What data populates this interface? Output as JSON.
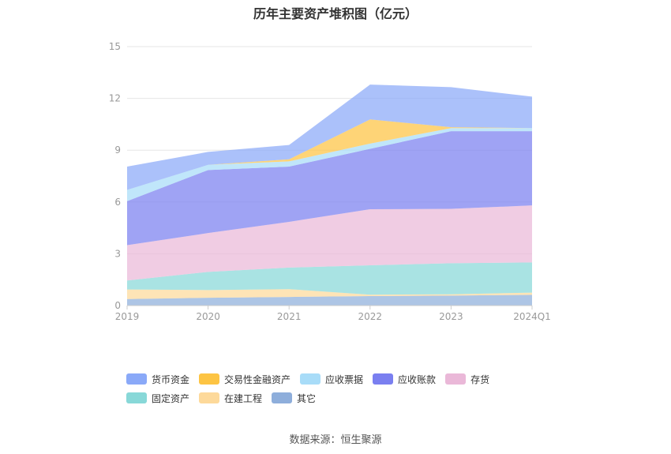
{
  "chart_data": {
    "type": "area",
    "title": "历年主要资产堆积图（亿元）",
    "x": [
      "2019",
      "2020",
      "2021",
      "2022",
      "2023",
      "2024Q1"
    ],
    "yticks": [
      "0",
      "3",
      "6",
      "9",
      "12",
      "15"
    ],
    "ylim": [
      0,
      15
    ],
    "stacked": true,
    "grid": true,
    "legend_position": "bottom",
    "series": [
      {
        "name": "其它",
        "color": "#8eaedb",
        "values": [
          0.38,
          0.45,
          0.5,
          0.55,
          0.58,
          0.62
        ]
      },
      {
        "name": "在建工程",
        "color": "#fdd99a",
        "values": [
          0.55,
          0.45,
          0.45,
          0.08,
          0.07,
          0.13
        ]
      },
      {
        "name": "固定资产",
        "color": "#88d8d8",
        "values": [
          0.52,
          1.05,
          1.25,
          1.7,
          1.8,
          1.75
        ]
      },
      {
        "name": "存货",
        "color": "#eab8d8",
        "values": [
          2.05,
          2.25,
          2.65,
          3.25,
          3.15,
          3.3
        ]
      },
      {
        "name": "应收账款",
        "color": "#7a7ff0",
        "values": [
          2.55,
          3.65,
          3.2,
          3.5,
          4.5,
          4.3
        ]
      },
      {
        "name": "应收票据",
        "color": "#a8dcf8",
        "values": [
          0.65,
          0.3,
          0.3,
          0.3,
          0.18,
          0.18
        ]
      },
      {
        "name": "交易性金融资产",
        "color": "#fdc443",
        "values": [
          0.0,
          0.0,
          0.12,
          1.4,
          0.05,
          0.0
        ]
      },
      {
        "name": "货币资金",
        "color": "#8aa9f8",
        "values": [
          1.35,
          0.75,
          0.83,
          2.02,
          2.32,
          1.82
        ]
      }
    ],
    "legend_order": [
      "货币资金",
      "交易性金融资产",
      "应收票据",
      "应收账款",
      "存货",
      "固定资产",
      "在建工程",
      "其它"
    ]
  },
  "source": "数据来源：恒生聚源"
}
